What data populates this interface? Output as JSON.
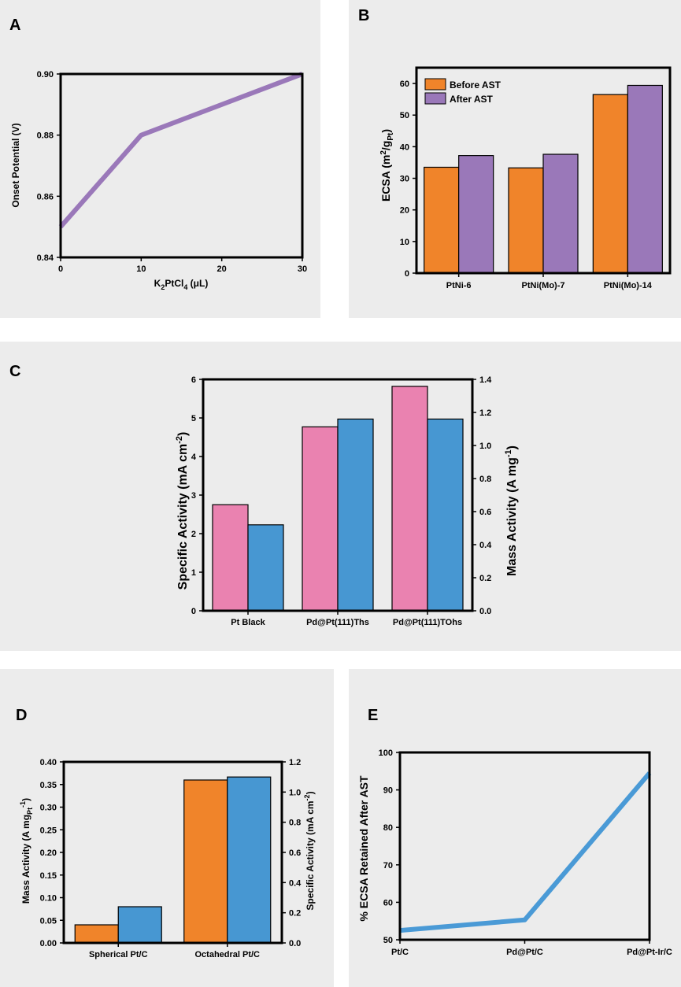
{
  "panels": {
    "A": {
      "label": "A"
    },
    "B": {
      "label": "B"
    },
    "C": {
      "label": "C"
    },
    "D": {
      "label": "D"
    },
    "E": {
      "label": "E"
    }
  },
  "colors": {
    "purple": "#9a78b9",
    "orange": "#f0842a",
    "blue": "#4797d2",
    "pink": "#ea82b0",
    "line_blue": "#4a9ad6"
  },
  "chart_data": [
    {
      "id": "A",
      "type": "line",
      "x": [
        0,
        10,
        30
      ],
      "values": [
        0.85,
        0.88,
        0.9
      ],
      "xlabel": "K2PtCl4 (μL)",
      "ylabel": "Onset Potential (V)",
      "xlim": [
        0,
        30
      ],
      "ylim": [
        0.84,
        0.9
      ],
      "xticks": [
        "0",
        "10",
        "20",
        "30"
      ],
      "yticks": [
        "0.84",
        "0.86",
        "0.88",
        "0.90"
      ],
      "xlabel_parts": {
        "a": "K",
        "b": "2",
        "c": "PtCl",
        "d": "4",
        "e": " (μL)"
      }
    },
    {
      "id": "B",
      "type": "bar",
      "categories": [
        "PtNi-6",
        "PtNi(Mo)-7",
        "PtNi(Mo)-14"
      ],
      "series": [
        {
          "name": "Before AST",
          "values": [
            33.5,
            33.3,
            56.5
          ]
        },
        {
          "name": "After AST",
          "values": [
            37.2,
            37.6,
            59.4
          ]
        }
      ],
      "ylabel": "ECSA (m2/gPt)",
      "ylim": [
        0,
        65
      ],
      "yticks": [
        "0",
        "10",
        "20",
        "30",
        "40",
        "50",
        "60"
      ],
      "ylabel_parts": {
        "a": "ECSA (m",
        "b": "2",
        "c": "/g",
        "d": "Pt",
        "e": ")"
      }
    },
    {
      "id": "C",
      "type": "bar",
      "categories": [
        "Pt Black",
        "Pd@Pt(111)Ths",
        "Pd@Pt(111)TOhs"
      ],
      "series": [
        {
          "name": "Specific Activity",
          "axis": "left",
          "values": [
            2.75,
            4.77,
            5.82
          ]
        },
        {
          "name": "Mass Activity",
          "axis": "right",
          "values": [
            0.52,
            1.16,
            1.16
          ]
        }
      ],
      "ylabel_left": "Specific Activity (mA cm-2)",
      "ylabel_right": "Mass Activity (A mg-1)",
      "ylim_left": [
        0,
        6
      ],
      "ylim_right": [
        0,
        1.4
      ],
      "yticks_left": [
        "0",
        "1",
        "2",
        "3",
        "4",
        "5",
        "6"
      ],
      "yticks_right": [
        "0.0",
        "0.2",
        "0.4",
        "0.6",
        "0.8",
        "1.0",
        "1.2",
        "1.4"
      ],
      "ylabel_left_parts": {
        "a": "Specific Activity (mA cm",
        "b": "-2",
        "c": ")"
      },
      "ylabel_right_parts": {
        "a": "Mass Activity (A mg",
        "b": "-1",
        "c": ")"
      }
    },
    {
      "id": "D",
      "type": "bar",
      "categories": [
        "Spherical Pt/C",
        "Octahedral Pt/C"
      ],
      "series": [
        {
          "name": "Mass Activity",
          "axis": "left",
          "values": [
            0.04,
            0.36
          ]
        },
        {
          "name": "Specific Activity",
          "axis": "right",
          "values": [
            0.24,
            1.1
          ]
        }
      ],
      "ylabel_left": "Mass Activity (A mgPt-1)",
      "ylabel_right": "Specific Activity (mA cm-2)",
      "ylim_left": [
        0,
        0.4
      ],
      "ylim_right": [
        0,
        1.2
      ],
      "yticks_left": [
        "0.00",
        "0.05",
        "0.10",
        "0.15",
        "0.20",
        "0.25",
        "0.30",
        "0.35",
        "0.40"
      ],
      "yticks_right": [
        "0.0",
        "0.2",
        "0.4",
        "0.6",
        "0.8",
        "1.0",
        "1.2"
      ],
      "ylabel_left_parts": {
        "a": "Mass Activity (A mg",
        "b": "Pt",
        "c": "-1",
        "d": ")"
      },
      "ylabel_right_parts": {
        "a": "Specific Activity (mA cm",
        "b": "-2",
        "c": ")"
      }
    },
    {
      "id": "E",
      "type": "line",
      "categories": [
        "Pt/C",
        "Pd@Pt/C",
        "Pd@Pt-Ir/C"
      ],
      "values": [
        52.5,
        55.3,
        94.5
      ],
      "ylabel": "% ECSA Retained After AST",
      "ylim": [
        50,
        100
      ],
      "yticks": [
        "50",
        "60",
        "70",
        "80",
        "90",
        "100"
      ]
    }
  ]
}
